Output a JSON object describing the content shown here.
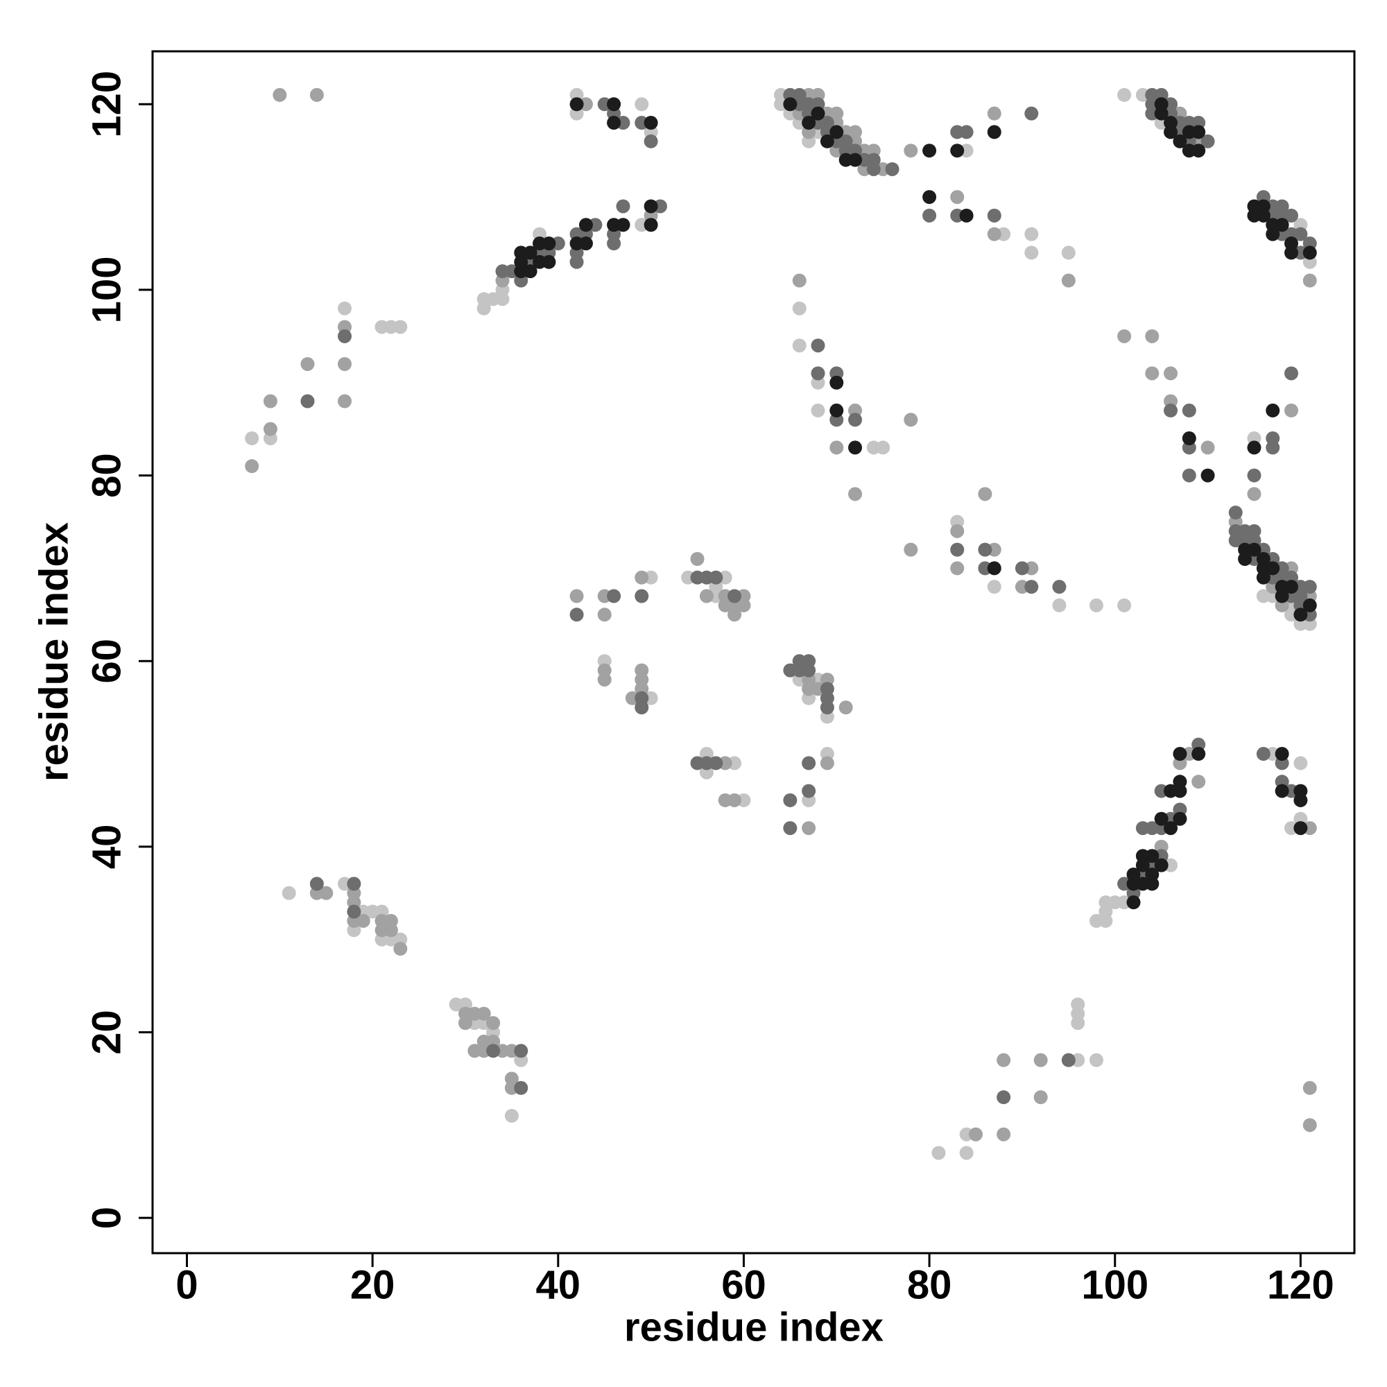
{
  "chart_data": {
    "type": "scatter",
    "xlabel": "residue index",
    "ylabel": "residue index",
    "xlim": [
      -3.7,
      125.8
    ],
    "ylim": [
      -3.8,
      125.7
    ],
    "xticks": [
      0,
      20,
      40,
      60,
      80,
      100,
      120
    ],
    "yticks": [
      0,
      20,
      40,
      60,
      80,
      100,
      120
    ],
    "series": [
      {
        "color": "#c4c4c4",
        "x": [
          42,
          42,
          49,
          50,
          32,
          32,
          33,
          34,
          34,
          38,
          49,
          7,
          9,
          17,
          21,
          22,
          23,
          50,
          54,
          57,
          57,
          58,
          45,
          50,
          56,
          56,
          59,
          60,
          11,
          17,
          18,
          19,
          20,
          21,
          21,
          22,
          23,
          29,
          30,
          31,
          32,
          33,
          35,
          36,
          64,
          64,
          65,
          66,
          67,
          68,
          84,
          88,
          91,
          91,
          95,
          101,
          103,
          105,
          120,
          121,
          66,
          66,
          68,
          68,
          74,
          75,
          83,
          87,
          94,
          98,
          101,
          115,
          116,
          117,
          119,
          119,
          120,
          121,
          66,
          67,
          67,
          68,
          69,
          69,
          98,
          99,
          99,
          99,
          100,
          101,
          106,
          117,
          119,
          120,
          120,
          81,
          84,
          84,
          96,
          96,
          96,
          96,
          98
        ],
        "values": [
          121,
          119,
          120,
          117,
          98,
          99,
          99,
          99,
          100,
          106,
          107,
          84,
          84,
          98,
          96,
          96,
          96,
          69,
          69,
          67,
          68,
          69,
          60,
          56,
          48,
          50,
          49,
          45,
          35,
          36,
          31,
          33,
          33,
          33,
          30,
          30,
          30,
          23,
          23,
          21,
          21,
          20,
          11,
          17,
          121,
          120,
          119,
          118,
          116,
          117,
          115,
          106,
          106,
          104,
          104,
          121,
          121,
          118,
          107,
          103,
          98,
          94,
          90,
          87,
          83,
          83,
          75,
          68,
          66,
          66,
          66,
          84,
          67,
          67,
          66,
          65,
          64,
          64,
          58,
          56,
          45,
          58,
          54,
          50,
          32,
          32,
          33,
          34,
          34,
          34,
          38,
          50,
          42,
          49,
          43,
          7,
          7,
          9,
          17,
          21,
          22,
          23,
          17
        ]
      },
      {
        "color": "#a2a2a2",
        "x": [
          10,
          14,
          43,
          50,
          34,
          7,
          9,
          9,
          13,
          17,
          17,
          17,
          42,
          45,
          45,
          49,
          55,
          56,
          58,
          58,
          59,
          59,
          60,
          60,
          45,
          45,
          48,
          49,
          49,
          49,
          58,
          58,
          59,
          14,
          15,
          18,
          18,
          18,
          19,
          21,
          21,
          22,
          22,
          23,
          30,
          30,
          31,
          31,
          32,
          32,
          32,
          33,
          33,
          34,
          35,
          35,
          35,
          66,
          67,
          67,
          68,
          69,
          70,
          70,
          70,
          71,
          72,
          72,
          73,
          73,
          74,
          75,
          78,
          87,
          83,
          87,
          95,
          107,
          109,
          121,
          66,
          70,
          72,
          72,
          78,
          78,
          83,
          83,
          86,
          87,
          90,
          91,
          101,
          104,
          104,
          106,
          106,
          110,
          115,
          119,
          113,
          117,
          118,
          119,
          121,
          67,
          67,
          67,
          68,
          69,
          69,
          71,
          105,
          107,
          108,
          109,
          121,
          85,
          88,
          88,
          92,
          92,
          121,
          121
        ],
        "values": [
          121,
          121,
          120,
          108,
          101,
          81,
          85,
          88,
          92,
          88,
          92,
          96,
          67,
          65,
          67,
          69,
          71,
          67,
          67,
          66,
          66,
          65,
          67,
          66,
          58,
          59,
          56,
          57,
          58,
          59,
          49,
          45,
          45,
          35,
          35,
          35,
          34,
          32,
          32,
          32,
          31,
          32,
          31,
          29,
          22,
          21,
          22,
          18,
          22,
          19,
          18,
          21,
          19,
          18,
          18,
          15,
          14,
          119,
          121,
          117,
          121,
          119,
          119,
          118,
          115,
          117,
          117,
          116,
          115,
          113,
          115,
          113,
          115,
          119,
          110,
          106,
          101,
          119,
          116,
          101,
          101,
          83,
          87,
          78,
          86,
          72,
          74,
          70,
          78,
          72,
          68,
          70,
          95,
          95,
          91,
          91,
          88,
          83,
          78,
          87,
          75,
          68,
          66,
          70,
          67,
          58,
          57,
          42,
          57,
          58,
          49,
          55,
          40,
          49,
          50,
          47,
          42,
          9,
          9,
          17,
          13,
          17,
          14,
          10
        ]
      },
      {
        "color": "#6e6e6e",
        "x": [
          45,
          46,
          47,
          49,
          50,
          34,
          35,
          36,
          37,
          38,
          39,
          40,
          42,
          42,
          42,
          43,
          44,
          46,
          46,
          47,
          51,
          13,
          17,
          42,
          46,
          49,
          55,
          56,
          57,
          59,
          49,
          49,
          55,
          56,
          57,
          14,
          18,
          18,
          33,
          36,
          36,
          65,
          66,
          66,
          67,
          67,
          68,
          68,
          69,
          69,
          70,
          71,
          71,
          72,
          73,
          74,
          74,
          76,
          83,
          84,
          91,
          80,
          83,
          87,
          104,
          104,
          104,
          105,
          106,
          106,
          107,
          107,
          108,
          108,
          109,
          110,
          116,
          117,
          117,
          118,
          118,
          118,
          119,
          119,
          120,
          120,
          121,
          68,
          68,
          70,
          70,
          72,
          83,
          86,
          86,
          90,
          91,
          94,
          106,
          108,
          108,
          108,
          115,
          117,
          117,
          119,
          113,
          113,
          113,
          114,
          114,
          115,
          115,
          115,
          116,
          117,
          117,
          118,
          118,
          119,
          119,
          120,
          120,
          120,
          121,
          121,
          65,
          65,
          65,
          66,
          66,
          67,
          67,
          67,
          67,
          69,
          69,
          69,
          101,
          102,
          103,
          103,
          104,
          104,
          105,
          105,
          105,
          106,
          107,
          109,
          116,
          118,
          118,
          119,
          88,
          95
        ],
        "values": [
          120,
          119,
          118,
          118,
          116,
          102,
          102,
          101,
          103,
          104,
          104,
          105,
          103,
          104,
          106,
          106,
          107,
          105,
          106,
          109,
          109,
          88,
          95,
          65,
          67,
          67,
          69,
          69,
          69,
          67,
          55,
          56,
          49,
          49,
          49,
          36,
          36,
          33,
          18,
          18,
          14,
          121,
          121,
          120,
          120,
          119,
          120,
          118,
          118,
          117,
          116,
          116,
          115,
          115,
          114,
          114,
          113,
          113,
          117,
          117,
          119,
          108,
          108,
          108,
          121,
          120,
          119,
          121,
          120,
          119,
          118,
          117,
          118,
          116,
          118,
          116,
          110,
          109,
          108,
          109,
          108,
          106,
          108,
          106,
          106,
          104,
          105,
          94,
          91,
          91,
          86,
          86,
          72,
          72,
          70,
          70,
          68,
          68,
          87,
          87,
          83,
          80,
          80,
          84,
          83,
          91,
          76,
          74,
          73,
          74,
          73,
          74,
          73,
          71,
          72,
          71,
          69,
          70,
          69,
          69,
          67,
          68,
          67,
          66,
          68,
          65,
          59,
          45,
          42,
          60,
          59,
          60,
          59,
          49,
          46,
          57,
          56,
          55,
          36,
          35,
          37,
          42,
          38,
          42,
          39,
          42,
          46,
          43,
          44,
          51,
          50,
          49,
          47,
          46,
          13,
          17
        ]
      },
      {
        "color": "#1c1c1c",
        "x": [
          42,
          46,
          46,
          50,
          36,
          36,
          36,
          37,
          37,
          38,
          38,
          39,
          39,
          42,
          43,
          43,
          46,
          47,
          50,
          50,
          65,
          67,
          68,
          69,
          70,
          71,
          72,
          80,
          83,
          87,
          80,
          84,
          105,
          105,
          106,
          106,
          107,
          108,
          108,
          109,
          109,
          115,
          115,
          116,
          116,
          117,
          117,
          118,
          119,
          119,
          121,
          70,
          70,
          72,
          87,
          108,
          110,
          115,
          117,
          114,
          114,
          115,
          116,
          116,
          116,
          117,
          118,
          118,
          119,
          120,
          121,
          102,
          102,
          102,
          103,
          103,
          103,
          104,
          104,
          104,
          105,
          105,
          106,
          106,
          107,
          107,
          107,
          107,
          109,
          118,
          118,
          120,
          120,
          120
        ],
        "values": [
          120,
          120,
          118,
          118,
          102,
          103,
          104,
          102,
          104,
          103,
          105,
          103,
          105,
          105,
          105,
          107,
          107,
          107,
          107,
          109,
          120,
          118,
          119,
          116,
          117,
          114,
          114,
          115,
          115,
          117,
          110,
          108,
          120,
          119,
          118,
          117,
          116,
          117,
          115,
          117,
          115,
          109,
          108,
          109,
          108,
          107,
          106,
          107,
          105,
          104,
          104,
          90,
          87,
          83,
          70,
          84,
          80,
          83,
          87,
          72,
          71,
          72,
          71,
          70,
          69,
          70,
          68,
          67,
          68,
          65,
          66,
          34,
          36,
          37,
          36,
          38,
          39,
          36,
          37,
          39,
          38,
          43,
          42,
          46,
          43,
          46,
          47,
          50,
          50,
          50,
          46,
          46,
          45,
          42
        ]
      }
    ]
  }
}
